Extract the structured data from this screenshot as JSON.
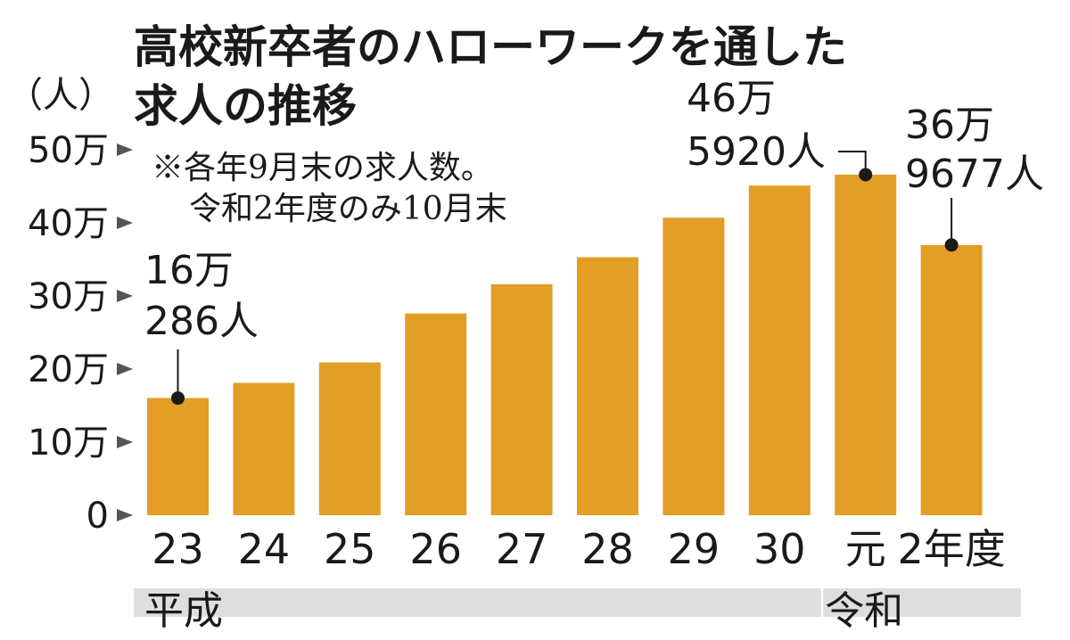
{
  "chart_data": {
    "type": "bar",
    "title_lines": [
      "高校新卒者のハローワークを通した",
      "求人の推移"
    ],
    "unit_label": "（人）",
    "note_lines": [
      "※各年9月末の求人数。",
      "令和2年度のみ10月末"
    ],
    "categories": [
      "23",
      "24",
      "25",
      "26",
      "27",
      "28",
      "29",
      "30",
      "元",
      "2年度"
    ],
    "values": [
      160286,
      181000,
      209000,
      276000,
      316000,
      353000,
      407000,
      451000,
      465920,
      369677
    ],
    "ylim": [
      0,
      500000
    ],
    "y_ticks": [
      {
        "value": 0,
        "label": "0"
      },
      {
        "value": 100000,
        "label": "10万"
      },
      {
        "value": 200000,
        "label": "20万"
      },
      {
        "value": 300000,
        "label": "30万"
      },
      {
        "value": 400000,
        "label": "40万"
      },
      {
        "value": 500000,
        "label": "50万"
      }
    ],
    "bar_color": "#E39E25",
    "era_bar_color": "#DEDEDE",
    "eras": [
      {
        "label": "平成",
        "categories": [
          "23",
          "24",
          "25",
          "26",
          "27",
          "28",
          "29",
          "30"
        ]
      },
      {
        "label": "令和",
        "categories": [
          "元",
          "2年度"
        ]
      }
    ],
    "annotations": [
      {
        "category": "23",
        "lines": [
          "16万",
          "286人"
        ]
      },
      {
        "category": "元",
        "lines": [
          "46万",
          "5920人"
        ]
      },
      {
        "category": "2年度",
        "lines": [
          "36万",
          "9677人"
        ]
      }
    ],
    "grid": false,
    "legend": "none"
  }
}
